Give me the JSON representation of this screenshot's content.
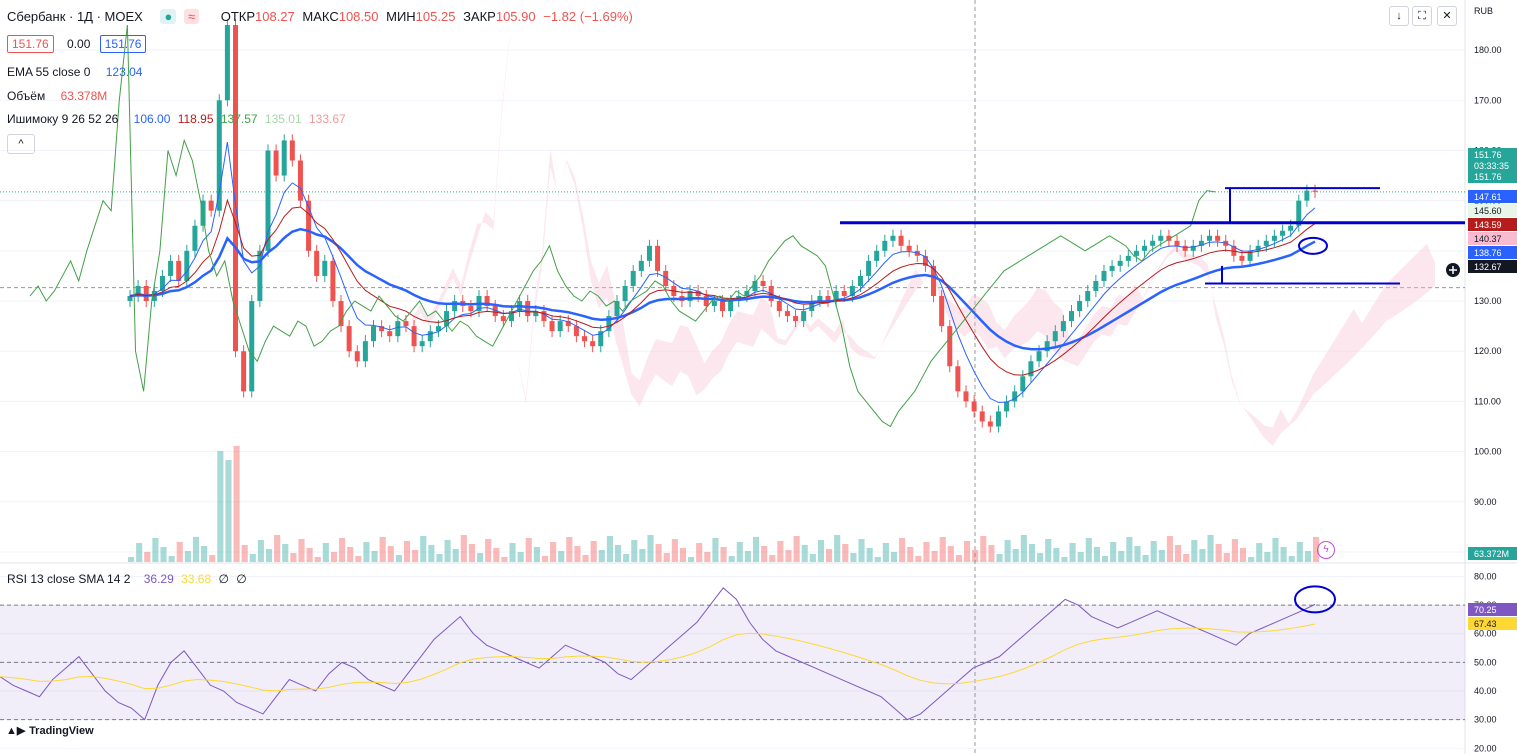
{
  "header": {
    "symbol": "Сбербанк · 1Д · MOEX",
    "ohlc_open_label": "ОТКР",
    "ohlc_open": "108.27",
    "ohlc_high_label": "МАКС",
    "ohlc_high": "108.50",
    "ohlc_low_label": "МИН",
    "ohlc_low": "105.25",
    "ohlc_close_label": "ЗАКР",
    "ohlc_close": "105.90",
    "ohlc_change": "−1.82 (−1.69%)",
    "bid": "151.76",
    "spread": "0.00",
    "ask": "151.76"
  },
  "indicators": {
    "ema_label": "EMA 55 close 0",
    "ema_value": "123.04",
    "volume_label": "Объём",
    "volume_value": "63.378M",
    "ichimoku_label": "Ишимоку 9 26 52 26",
    "ichimoku_values": [
      "106.00",
      "118.95",
      "137.57",
      "135.01",
      "133.67"
    ],
    "rsi_label": "RSI 13 close SMA 14 2",
    "rsi_value": "36.29",
    "rsi_sma": "33.68",
    "rsi_extra1": "∅",
    "rsi_extra2": "∅"
  },
  "toolbar": {
    "down": "↓",
    "fullscreen": "⛶",
    "close": "✕",
    "currency": "RUB",
    "collapse": "^"
  },
  "price_axis": {
    "ticks": [
      "180.00",
      "170.00",
      "160.00",
      "150.00",
      "140.00",
      "130.00",
      "120.00",
      "110.00",
      "100.00",
      "90.00",
      "80.00"
    ],
    "labels": [
      {
        "text": "151.76",
        "sub": "03:33:35",
        "color": "#26a69a"
      },
      {
        "text": "151.76",
        "color": "#26a69a"
      },
      {
        "text": "147.61",
        "color": "#2962ff"
      },
      {
        "text": "145.60",
        "color": "#e8f5e9"
      },
      {
        "text": "143.59",
        "color": "#b71c1c"
      },
      {
        "text": "140.37",
        "color": "#f8bbd0"
      },
      {
        "text": "138.76",
        "color": "#2962ff"
      },
      {
        "text": "132.67",
        "color": "#131722"
      }
    ],
    "volume_label": "63.372M"
  },
  "rsi_axis": {
    "ticks": [
      "80.00",
      "70.00",
      "60.00",
      "50.00",
      "40.00",
      "30.00",
      "20.00"
    ],
    "labels": [
      {
        "text": "70.25",
        "color": "#7e57c2"
      },
      {
        "text": "67.43",
        "color": "#fdd835"
      }
    ]
  },
  "branding": {
    "logo": "TradingView"
  },
  "colors": {
    "up": "#26a69a",
    "down": "#ef5350",
    "ema": "#2962ff",
    "tenkan": "#2962ff",
    "kijun": "#b71c1c",
    "chikou": "#43a047",
    "cloud_up": "#a5d6a7",
    "cloud_down": "#f8bbd0",
    "rsi": "#7e57c2",
    "rsi_sma": "#fdd835",
    "drawing": "#0000cc"
  },
  "chart_data": [
    {
      "type": "candlestick",
      "title": "Сбербанк · 1Д · MOEX",
      "ylim": [
        78,
        185
      ],
      "series": [
        {
          "name": "price",
          "values": [
            131,
            133,
            130,
            132,
            135,
            138,
            134,
            140,
            145,
            150,
            148,
            170,
            185,
            120,
            112,
            130,
            140,
            160,
            155,
            162,
            158,
            150,
            140,
            135,
            138,
            130,
            125,
            120,
            118,
            122,
            125,
            124,
            123,
            126,
            125,
            121,
            122,
            124,
            125,
            128,
            130,
            129,
            128,
            131,
            129,
            127,
            126,
            128,
            130,
            127,
            128,
            126,
            124,
            126,
            125,
            123,
            122,
            121,
            124,
            127,
            130,
            133,
            136,
            138,
            141,
            136,
            133,
            131,
            130,
            132,
            131,
            129,
            130,
            128,
            130,
            131,
            132,
            134,
            133,
            130,
            128,
            127,
            126,
            128,
            130,
            131,
            130,
            132,
            131,
            133,
            135,
            138,
            140,
            142,
            143,
            141,
            140,
            139,
            137,
            131,
            125,
            117,
            112,
            110,
            108,
            106,
            105,
            108,
            110,
            112,
            115,
            118,
            120,
            122,
            124,
            126,
            128,
            130,
            132,
            134,
            136,
            137,
            138,
            139,
            140,
            141,
            142,
            143,
            142,
            141,
            140,
            141,
            142,
            143,
            142,
            141,
            139,
            138,
            140,
            141,
            142,
            143,
            144,
            145,
            150,
            152,
            151.76
          ]
        },
        {
          "name": "EMA 55 close 0",
          "values": []
        }
      ]
    },
    {
      "type": "line",
      "title": "RSI 13 close SMA 14 2",
      "ylim": [
        18,
        84
      ],
      "series": [
        {
          "name": "RSI",
          "values": [
            45,
            42,
            40,
            38,
            44,
            48,
            52,
            46,
            40,
            36,
            34,
            30,
            42,
            50,
            54,
            48,
            42,
            40,
            36,
            34,
            32,
            38,
            44,
            42,
            40,
            46,
            50,
            48,
            44,
            42,
            40,
            46,
            52,
            58,
            62,
            66,
            60,
            56,
            54,
            52,
            50,
            48,
            52,
            56,
            54,
            52,
            50,
            46,
            44,
            48,
            52,
            56,
            60,
            64,
            70,
            76,
            72,
            64,
            58,
            54,
            52,
            50,
            48,
            46,
            44,
            42,
            40,
            38,
            34,
            30,
            32,
            36,
            40,
            44,
            48,
            50,
            52,
            56,
            60,
            64,
            68,
            72,
            70,
            66,
            64,
            62,
            64,
            66,
            68,
            66,
            64,
            62,
            60,
            58,
            56,
            60,
            62,
            64,
            66,
            68,
            70.25
          ]
        },
        {
          "name": "SMA",
          "values": []
        }
      ]
    }
  ]
}
